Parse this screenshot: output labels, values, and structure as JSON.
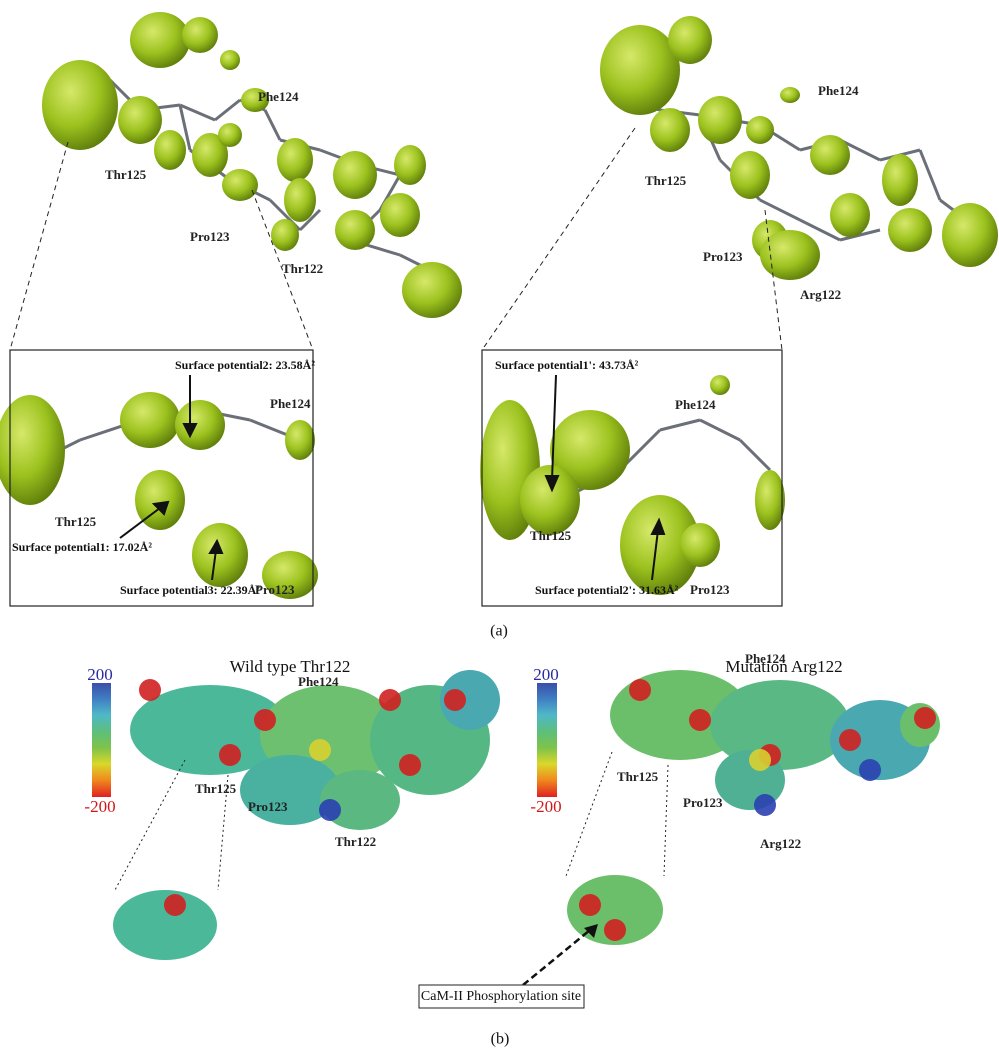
{
  "panel_a": {
    "label": "(a)",
    "left": {
      "labels": [
        "Phe124",
        "Thr125",
        "Pro123",
        "Thr122"
      ],
      "inset": {
        "annotations": [
          "Surface potential2: 23.58Å²",
          "Surface potential1: 17.02Å²",
          "Surface potential3: 22.39Å²"
        ],
        "labels": [
          "Phe124",
          "Thr125",
          "Pro123"
        ]
      }
    },
    "right": {
      "labels": [
        "Phe124",
        "Thr125",
        "Pro123",
        "Arg122"
      ],
      "inset": {
        "annotations": [
          "Surface potential1': 43.73Å²",
          "Surface potential2': 31.63Å²"
        ],
        "labels": [
          "Phe124",
          "Thr125",
          "Pro123"
        ]
      }
    }
  },
  "panel_b": {
    "label": "(b)",
    "left": {
      "title": "Wild type Thr122",
      "scale_max": 200,
      "scale_min": -200,
      "labels": [
        "Phe124",
        "Thr125",
        "Pro123",
        "Thr122"
      ]
    },
    "right": {
      "title": "Mutation Arg122",
      "scale_max": 200,
      "scale_min": -200,
      "labels": [
        "Phe124",
        "Thr125",
        "Pro123",
        "Arg122"
      ]
    },
    "callout": "CaM-II Phosphorylation site"
  }
}
